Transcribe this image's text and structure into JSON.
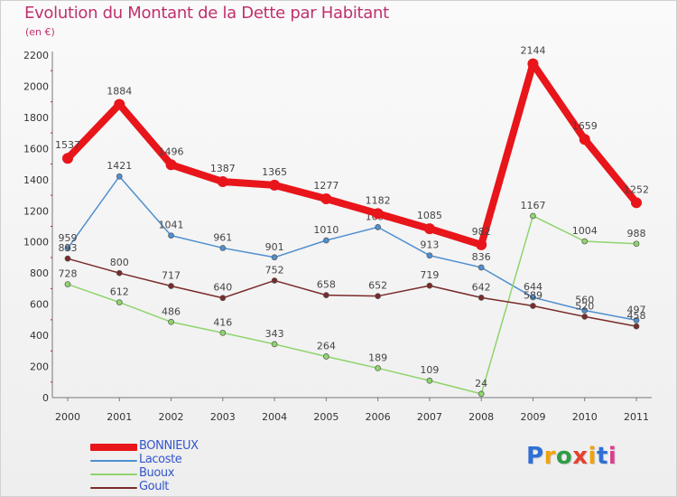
{
  "header": {
    "title": "Evolution du Montant de la Dette par Habitant",
    "subtitle": "(en €)"
  },
  "brand": {
    "letters": [
      "P",
      "r",
      "o",
      "x",
      "i",
      "t",
      "i"
    ],
    "colors": [
      "#2f6fd6",
      "#f2a20a",
      "#2f9d46",
      "#e6402f",
      "#f2a20a",
      "#2f6fd6",
      "#d93f8f"
    ]
  },
  "chart_data": {
    "type": "line",
    "title": "Evolution du Montant de la Dette par Habitant",
    "subtitle": "(en €)",
    "xlabel": "",
    "ylabel": "",
    "categories": [
      "2000",
      "2001",
      "2002",
      "2003",
      "2004",
      "2005",
      "2006",
      "2007",
      "2008",
      "2009",
      "2010",
      "2011"
    ],
    "ylim": [
      0,
      2200
    ],
    "yticks": [
      0,
      200,
      400,
      600,
      800,
      1000,
      1200,
      1400,
      1600,
      1800,
      2000,
      2200
    ],
    "grid": false,
    "legend_position": "bottom-left",
    "series": [
      {
        "name": "BONNIEUX",
        "color": "#e8151a",
        "values": [
          1537,
          1884,
          1496,
          1387,
          1365,
          1277,
          1182,
          1085,
          982,
          2144,
          1659,
          1252
        ]
      },
      {
        "name": "Lacoste",
        "color": "#4f8fcf",
        "values": [
          959,
          1421,
          1041,
          961,
          901,
          1010,
          1095,
          913,
          836,
          644,
          560,
          497
        ]
      },
      {
        "name": "Buoux",
        "color": "#8fd46c",
        "values": [
          728,
          612,
          486,
          416,
          343,
          264,
          189,
          109,
          24,
          1167,
          1004,
          988
        ]
      },
      {
        "name": "Goult",
        "color": "#7a2a2a",
        "values": [
          893,
          800,
          717,
          640,
          752,
          658,
          652,
          719,
          642,
          589,
          520,
          458
        ]
      }
    ]
  }
}
